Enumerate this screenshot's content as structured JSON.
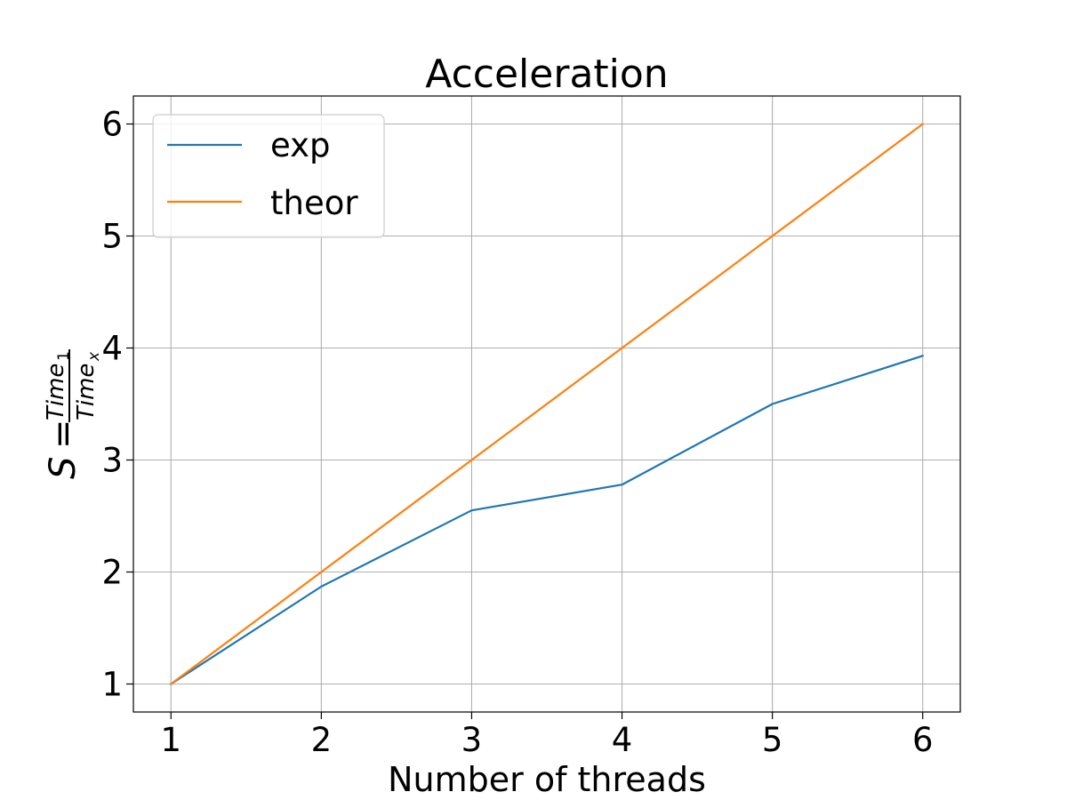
{
  "chart_data": {
    "type": "line",
    "title": "Acceleration",
    "xlabel": "Number of threads",
    "ylabel": {
      "lhs": "S",
      "eq": "=",
      "numerator": "Time",
      "numerator_sub": "1",
      "denominator": "Time",
      "denominator_sub": "x"
    },
    "x": [
      1,
      2,
      3,
      4,
      5,
      6
    ],
    "xlim": [
      0.75,
      6.25
    ],
    "ylim": [
      0.75,
      6.25
    ],
    "xticks": [
      "1",
      "2",
      "3",
      "4",
      "5",
      "6"
    ],
    "yticks": [
      "1",
      "2",
      "3",
      "4",
      "5",
      "6"
    ],
    "grid": true,
    "legend_position": "top-left",
    "series": [
      {
        "name": "exp",
        "color": "#1f77b4",
        "values": [
          1.0,
          1.87,
          2.55,
          2.78,
          3.5,
          3.93
        ]
      },
      {
        "name": "theor",
        "color": "#ff7f0e",
        "values": [
          1.0,
          2.0,
          3.0,
          4.0,
          5.0,
          6.0
        ]
      }
    ]
  }
}
